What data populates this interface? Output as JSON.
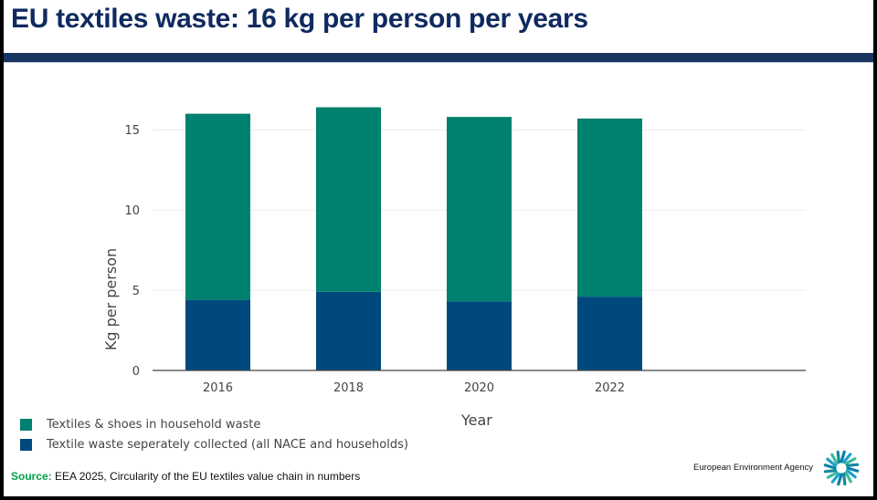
{
  "slide": {
    "title": "EU textiles waste: 16 kg per person per years",
    "source_label": "Source:",
    "source_text": "EEA 2025, Circularity of the EU textiles value chain in numbers",
    "agency_name": "European Environment Agency"
  },
  "colors": {
    "title": "#0f2a60",
    "rule": "#173461",
    "household": "#00806e",
    "collected": "#00497c",
    "source_label": "#00a14b"
  },
  "chart_data": {
    "type": "bar",
    "stacked": true,
    "categories": [
      "2016",
      "2018",
      "2020",
      "2022"
    ],
    "series": [
      {
        "name": "Textile waste seperately collected (all NACE and households)",
        "values": [
          4.4,
          4.9,
          4.3,
          4.6
        ],
        "color": "#00497c"
      },
      {
        "name": "Textiles & shoes in household waste",
        "values": [
          11.6,
          11.5,
          11.5,
          11.1
        ],
        "color": "#00806e"
      }
    ],
    "legend_order": [
      1,
      0
    ],
    "xlabel": "Year",
    "ylabel": "Kg per person",
    "ylim": [
      0,
      17.4
    ],
    "yticks": [
      0,
      5,
      10,
      15
    ],
    "xlim": [
      2015,
      2025
    ],
    "grid": true,
    "legend_position": "bottom-left"
  }
}
